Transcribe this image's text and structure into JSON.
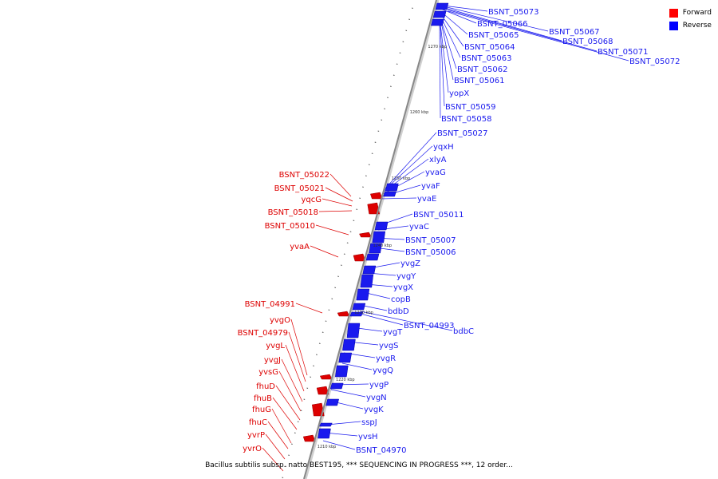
{
  "caption": "Bacillus subtilis subsp. natto BEST195, *** SEQUENCING IN PROGRESS ***, 12 order...",
  "legend": {
    "forward_label": "Forward",
    "reverse_label": "Reverse",
    "forward_color": "#ff0000",
    "reverse_color": "#0000ff"
  },
  "colors": {
    "forward": "#dd0000",
    "reverse": "#1a1aee",
    "backbone": "#888888"
  },
  "ticks": [
    "1270 kbp",
    "1260 kbp",
    "1250 kbp",
    "1240 kbp",
    "1230 kbp",
    "1220 kbp",
    "1210 kbp"
  ],
  "reverse_genes": [
    "BSNT_05073",
    "BSNT_05066",
    "BSNT_05065",
    "BSNT_05067",
    "BSNT_05068",
    "BSNT_05071",
    "BSNT_05072",
    "BSNT_05064",
    "BSNT_05063",
    "BSNT_05062",
    "BSNT_05061",
    "yopX",
    "BSNT_05059",
    "BSNT_05058",
    "BSNT_05027",
    "yqxH",
    "xlyA",
    "yvaG",
    "yvaF",
    "yvaE",
    "BSNT_05011",
    "yvaC",
    "BSNT_05007",
    "BSNT_05006",
    "yvgZ",
    "yvgY",
    "yvgX",
    "copB",
    "bdbD",
    "BSNT_04993",
    "bdbC",
    "yvgT",
    "yvgS",
    "yvgR",
    "yvgQ",
    "yvgP",
    "yvgN",
    "yvgK",
    "sspJ",
    "yvsH",
    "BSNT_04970"
  ],
  "forward_genes": [
    "BSNT_05022",
    "BSNT_05021",
    "yqcG",
    "BSNT_05018",
    "BSNT_05010",
    "yvaA",
    "BSNT_04991",
    "yvgO",
    "BSNT_04979",
    "yvgL",
    "yvgJ",
    "yvsG",
    "fhuD",
    "fhuB",
    "fhuG",
    "fhuC",
    "yvrP",
    "yvrO"
  ]
}
